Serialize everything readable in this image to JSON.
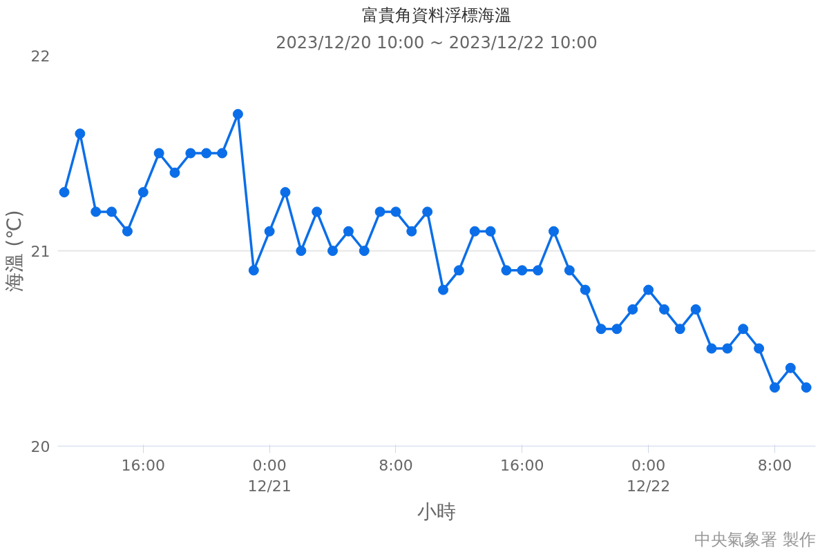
{
  "chart_data": {
    "type": "line",
    "title": "富貴角資料浮標海溫",
    "subtitle": "2023/12/20 10:00 ~ 2023/12/22 10:00",
    "xlabel": "小時",
    "ylabel": "海溫 (℃)",
    "annotations": [
      "中央氣象署 製作"
    ],
    "x": [
      "2023-12-20T11:00",
      "2023-12-20T12:00",
      "2023-12-20T13:00",
      "2023-12-20T14:00",
      "2023-12-20T15:00",
      "2023-12-20T16:00",
      "2023-12-20T17:00",
      "2023-12-20T18:00",
      "2023-12-20T19:00",
      "2023-12-20T20:00",
      "2023-12-20T21:00",
      "2023-12-20T22:00",
      "2023-12-20T23:00",
      "2023-12-21T00:00",
      "2023-12-21T01:00",
      "2023-12-21T02:00",
      "2023-12-21T03:00",
      "2023-12-21T04:00",
      "2023-12-21T05:00",
      "2023-12-21T06:00",
      "2023-12-21T07:00",
      "2023-12-21T08:00",
      "2023-12-21T09:00",
      "2023-12-21T10:00",
      "2023-12-21T11:00",
      "2023-12-21T12:00",
      "2023-12-21T13:00",
      "2023-12-21T14:00",
      "2023-12-21T15:00",
      "2023-12-21T16:00",
      "2023-12-21T17:00",
      "2023-12-21T18:00",
      "2023-12-21T19:00",
      "2023-12-21T20:00",
      "2023-12-21T21:00",
      "2023-12-21T22:00",
      "2023-12-21T23:00",
      "2023-12-22T00:00",
      "2023-12-22T01:00",
      "2023-12-22T02:00",
      "2023-12-22T03:00",
      "2023-12-22T04:00",
      "2023-12-22T05:00",
      "2023-12-22T06:00",
      "2023-12-22T07:00",
      "2023-12-22T08:00",
      "2023-12-22T09:00",
      "2023-12-22T10:00"
    ],
    "series": [
      {
        "color": "#0b6ee8",
        "values": [
          21.3,
          21.6,
          21.2,
          21.2,
          21.1,
          21.3,
          21.5,
          21.4,
          21.5,
          21.5,
          21.5,
          21.7,
          20.9,
          21.1,
          21.3,
          21.0,
          21.2,
          21.0,
          21.1,
          21.0,
          21.2,
          21.2,
          21.1,
          21.2,
          20.8,
          20.9,
          21.1,
          21.1,
          20.9,
          20.9,
          20.9,
          21.1,
          20.9,
          20.8,
          20.6,
          20.6,
          20.7,
          20.8,
          20.7,
          20.6,
          20.7,
          20.5,
          20.5,
          20.6,
          20.5,
          20.3,
          20.4,
          20.3
        ]
      }
    ],
    "xlim": [
      "2023-12-20T10:35",
      "2023-12-22T10:35"
    ],
    "xticks": [
      {
        "value": "2023-12-20T16:00",
        "label": "16:00"
      },
      {
        "value": "2023-12-21T00:00",
        "label": "0:00\n12/21"
      },
      {
        "value": "2023-12-21T08:00",
        "label": "8:00"
      },
      {
        "value": "2023-12-21T16:00",
        "label": "16:00"
      },
      {
        "value": "2023-12-22T00:00",
        "label": "0:00\n12/22"
      },
      {
        "value": "2023-12-22T08:00",
        "label": "8:00"
      }
    ],
    "ylim": [
      20,
      22
    ],
    "yticks": [
      20,
      21,
      22
    ],
    "grid": "y",
    "marker": "circle",
    "line_style": "solid"
  }
}
